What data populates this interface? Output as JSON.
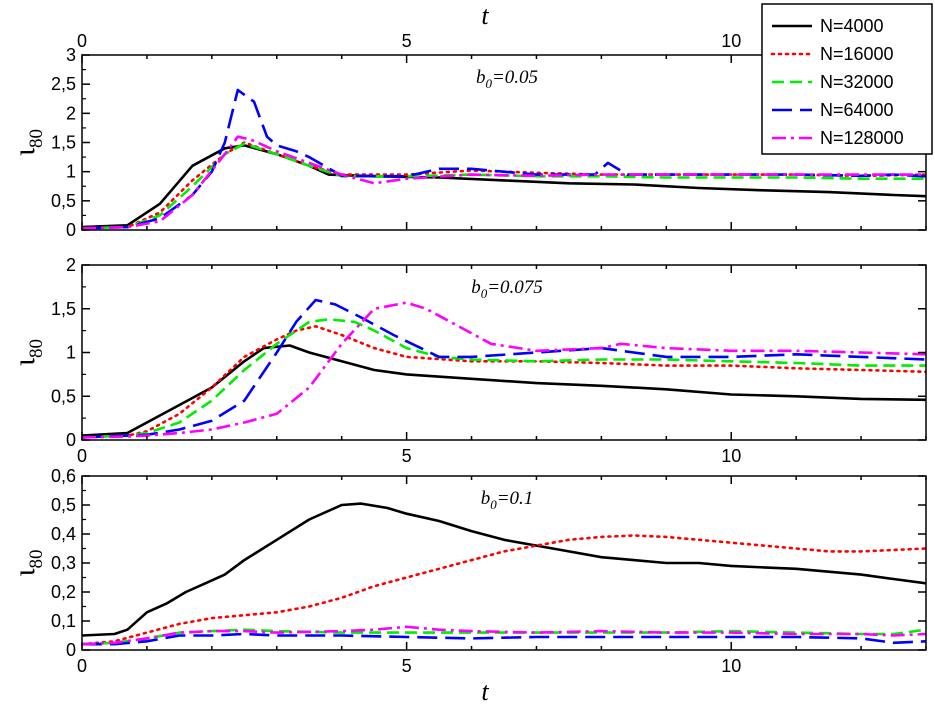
{
  "chart_data": {
    "type": "line",
    "xlabel": "t",
    "xlim": [
      0,
      13
    ],
    "x_ticks": [
      0,
      5,
      10
    ],
    "legend": {
      "location": "top-right",
      "entries": [
        "N=4000",
        "N=16000",
        "N=32000",
        "N=64000",
        "N=128000"
      ]
    },
    "series_styles": [
      {
        "name": "N=4000",
        "color": "#000000",
        "dash": "solid"
      },
      {
        "name": "N=16000",
        "color": "#ff0000",
        "dash": "dotted"
      },
      {
        "name": "N=32000",
        "color": "#00ee00",
        "dash": "dashed"
      },
      {
        "name": "N=64000",
        "color": "#0000ff",
        "dash": "long-dashed"
      },
      {
        "name": "N=128000",
        "color": "#ff00ff",
        "dash": "dash-dot"
      }
    ],
    "panels": [
      {
        "annotation_base": "b",
        "annotation_sub": "0",
        "annotation_value": "=0.05",
        "ylabel_main": "ι",
        "ylabel_sub": "80",
        "ylim": [
          0,
          3
        ],
        "y_ticks": [
          0,
          0.5,
          1,
          1.5,
          2,
          2.5,
          3
        ],
        "y_tick_labels": [
          "0",
          "0,5",
          "1",
          "1,5",
          "2",
          "2,5",
          "3"
        ],
        "series": [
          {
            "name": "N=4000",
            "x": [
              0,
              0.7,
              1.2,
              1.7,
              2.2,
              2.5,
              3.0,
              3.5,
              3.8,
              4.5,
              5.5,
              6.5,
              7.5,
              8.5,
              9.5,
              10.5,
              11.5,
              12.5,
              13
            ],
            "y": [
              0.05,
              0.08,
              0.45,
              1.1,
              1.4,
              1.45,
              1.3,
              1.1,
              0.95,
              0.92,
              0.9,
              0.85,
              0.8,
              0.78,
              0.72,
              0.68,
              0.65,
              0.6,
              0.58
            ]
          },
          {
            "name": "N=16000",
            "x": [
              0,
              0.7,
              1.2,
              1.7,
              2.2,
              2.5,
              3.0,
              3.5,
              4.0,
              5.0,
              6.0,
              7.0,
              8.0,
              9.0,
              10.0,
              11.0,
              12.0,
              13
            ],
            "y": [
              0.03,
              0.05,
              0.3,
              0.85,
              1.3,
              1.5,
              1.3,
              1.1,
              0.95,
              0.95,
              1.02,
              0.98,
              0.95,
              0.95,
              0.95,
              0.95,
              0.93,
              0.95
            ]
          },
          {
            "name": "N=32000",
            "x": [
              0,
              0.7,
              1.2,
              1.7,
              2.2,
              2.5,
              3.0,
              3.5,
              4.0,
              5.0,
              6.0,
              7.0,
              8.0,
              9.0,
              10.0,
              11.0,
              12.0,
              13
            ],
            "y": [
              0.03,
              0.05,
              0.25,
              0.75,
              1.3,
              1.48,
              1.3,
              1.1,
              0.92,
              0.92,
              0.95,
              0.92,
              0.92,
              0.9,
              0.9,
              0.9,
              0.88,
              0.88
            ]
          },
          {
            "name": "N=64000",
            "x": [
              0,
              0.7,
              1.2,
              1.7,
              2.0,
              2.2,
              2.4,
              2.65,
              2.85,
              3.0,
              3.3,
              3.5,
              4.0,
              5.0,
              5.5,
              6.0,
              7.0,
              7.9,
              8.1,
              8.4,
              9.0,
              10.0,
              11.0,
              12.0,
              12.5,
              13
            ],
            "y": [
              0.03,
              0.05,
              0.2,
              0.6,
              1.0,
              1.5,
              2.4,
              2.2,
              1.6,
              1.45,
              1.35,
              1.25,
              0.93,
              0.92,
              1.05,
              1.05,
              0.95,
              0.95,
              1.15,
              0.95,
              0.95,
              0.95,
              0.95,
              0.93,
              0.95,
              0.92
            ]
          },
          {
            "name": "N=128000",
            "x": [
              0,
              0.7,
              1.2,
              1.7,
              2.2,
              2.4,
              2.6,
              3.0,
              3.5,
              4.0,
              4.5,
              5.0,
              6.0,
              7.0,
              8.0,
              9.0,
              10.0,
              11.0,
              12.0,
              13
            ],
            "y": [
              0.03,
              0.05,
              0.15,
              0.6,
              1.3,
              1.6,
              1.55,
              1.35,
              1.15,
              0.95,
              0.8,
              0.88,
              0.95,
              0.93,
              0.95,
              0.95,
              0.95,
              0.95,
              0.95,
              0.95
            ]
          }
        ]
      },
      {
        "annotation_base": "b",
        "annotation_sub": "0",
        "annotation_value": "=0.075",
        "ylabel_main": "ι",
        "ylabel_sub": "80",
        "ylim": [
          0,
          2
        ],
        "y_ticks": [
          0,
          0.5,
          1,
          1.5,
          2
        ],
        "y_tick_labels": [
          "0",
          "0,5",
          "1",
          "1,5",
          "2"
        ],
        "series": [
          {
            "name": "N=4000",
            "x": [
              0,
              0.7,
              1.0,
              1.5,
              2.0,
              2.5,
              2.8,
              3.2,
              3.5,
              4.0,
              4.5,
              5.0,
              6.0,
              7.0,
              8.0,
              9.0,
              10.0,
              11.0,
              12.0,
              13
            ],
            "y": [
              0.05,
              0.08,
              0.2,
              0.4,
              0.6,
              0.9,
              1.05,
              1.08,
              1.0,
              0.9,
              0.8,
              0.75,
              0.7,
              0.65,
              0.62,
              0.58,
              0.52,
              0.5,
              0.47,
              0.46
            ]
          },
          {
            "name": "N=16000",
            "x": [
              0,
              0.7,
              1.0,
              1.5,
              2.0,
              2.5,
              3.0,
              3.3,
              3.6,
              4.0,
              4.5,
              5.0,
              6.0,
              7.0,
              8.0,
              9.0,
              10.0,
              11.0,
              12.0,
              13
            ],
            "y": [
              0.03,
              0.05,
              0.1,
              0.3,
              0.6,
              0.95,
              1.15,
              1.25,
              1.3,
              1.2,
              1.05,
              0.95,
              0.9,
              0.9,
              0.88,
              0.85,
              0.85,
              0.82,
              0.8,
              0.78
            ]
          },
          {
            "name": "N=32000",
            "x": [
              0,
              0.7,
              1.0,
              1.5,
              2.0,
              2.5,
              3.0,
              3.5,
              3.8,
              4.2,
              4.5,
              5.0,
              5.5,
              6.0,
              7.0,
              8.0,
              9.0,
              10.0,
              11.0,
              12.0,
              13
            ],
            "y": [
              0.03,
              0.05,
              0.08,
              0.2,
              0.45,
              0.8,
              1.1,
              1.35,
              1.38,
              1.35,
              1.25,
              1.05,
              0.95,
              0.92,
              0.9,
              0.92,
              0.92,
              0.9,
              0.88,
              0.85,
              0.85
            ]
          },
          {
            "name": "N=64000",
            "x": [
              0,
              0.7,
              1.0,
              1.5,
              2.0,
              2.5,
              3.0,
              3.3,
              3.6,
              3.9,
              4.3,
              4.8,
              5.5,
              6.0,
              7.0,
              8.0,
              8.5,
              9.0,
              10.0,
              11.0,
              12.0,
              13
            ],
            "y": [
              0.03,
              0.05,
              0.06,
              0.12,
              0.22,
              0.45,
              1.0,
              1.35,
              1.6,
              1.55,
              1.4,
              1.2,
              0.95,
              0.95,
              1.0,
              1.05,
              1.0,
              0.95,
              0.95,
              0.98,
              0.95,
              0.92
            ]
          },
          {
            "name": "N=128000",
            "x": [
              0,
              0.7,
              1.0,
              1.5,
              2.0,
              2.5,
              3.0,
              3.5,
              4.0,
              4.5,
              5.0,
              5.3,
              5.8,
              6.3,
              7.0,
              8.0,
              8.3,
              9.0,
              10.0,
              11.0,
              12.0,
              13
            ],
            "y": [
              0.03,
              0.04,
              0.05,
              0.08,
              0.12,
              0.2,
              0.3,
              0.6,
              1.1,
              1.5,
              1.57,
              1.5,
              1.3,
              1.1,
              1.02,
              1.05,
              1.1,
              1.05,
              1.02,
              1.02,
              1.0,
              0.98
            ]
          }
        ]
      },
      {
        "annotation_base": "b",
        "annotation_sub": "0",
        "annotation_value": "=0.1",
        "ylabel_main": "ι",
        "ylabel_sub": "80",
        "ylim": [
          0,
          0.6
        ],
        "y_ticks": [
          0,
          0.1,
          0.2,
          0.3,
          0.4,
          0.5,
          0.6
        ],
        "y_tick_labels": [
          "0",
          "0,1",
          "0,2",
          "0,3",
          "0,4",
          "0,5",
          "0,6"
        ],
        "series": [
          {
            "name": "N=4000",
            "x": [
              0,
              0.5,
              0.7,
              1.0,
              1.3,
              1.6,
              1.9,
              2.2,
              2.5,
              3.0,
              3.5,
              4.0,
              4.3,
              4.7,
              5.0,
              5.5,
              6.0,
              6.5,
              7.0,
              7.5,
              8.0,
              8.5,
              9.0,
              9.5,
              10.0,
              10.5,
              11.0,
              11.5,
              12.0,
              12.5,
              13
            ],
            "y": [
              0.05,
              0.055,
              0.07,
              0.13,
              0.16,
              0.2,
              0.23,
              0.26,
              0.31,
              0.38,
              0.45,
              0.5,
              0.505,
              0.49,
              0.47,
              0.445,
              0.41,
              0.38,
              0.36,
              0.34,
              0.32,
              0.31,
              0.3,
              0.3,
              0.29,
              0.285,
              0.28,
              0.27,
              0.26,
              0.245,
              0.23
            ]
          },
          {
            "name": "N=16000",
            "x": [
              0,
              0.5,
              1.0,
              1.5,
              2.0,
              2.5,
              3.0,
              3.5,
              4.0,
              4.5,
              5.0,
              5.5,
              6.0,
              6.5,
              7.0,
              7.5,
              8.0,
              8.5,
              9.0,
              9.5,
              10.0,
              10.5,
              11.0,
              11.5,
              12.0,
              12.5,
              13
            ],
            "y": [
              0.02,
              0.03,
              0.06,
              0.09,
              0.11,
              0.12,
              0.13,
              0.15,
              0.18,
              0.22,
              0.25,
              0.28,
              0.31,
              0.34,
              0.36,
              0.38,
              0.39,
              0.395,
              0.39,
              0.38,
              0.37,
              0.36,
              0.35,
              0.34,
              0.34,
              0.345,
              0.35
            ]
          },
          {
            "name": "N=32000",
            "x": [
              0,
              0.5,
              1.0,
              1.5,
              2.0,
              2.5,
              3.0,
              4.0,
              5.0,
              6.0,
              7.0,
              8.0,
              9.0,
              10.0,
              11.0,
              12.0,
              12.5,
              13
            ],
            "y": [
              0.02,
              0.025,
              0.04,
              0.06,
              0.065,
              0.07,
              0.065,
              0.06,
              0.06,
              0.06,
              0.06,
              0.06,
              0.06,
              0.065,
              0.06,
              0.055,
              0.055,
              0.07
            ]
          },
          {
            "name": "N=64000",
            "x": [
              0,
              0.5,
              1.0,
              1.5,
              2.0,
              2.5,
              3.0,
              4.0,
              5.0,
              6.0,
              7.0,
              8.0,
              9.0,
              10.0,
              11.0,
              12.0,
              12.5,
              13
            ],
            "y": [
              0.02,
              0.02,
              0.03,
              0.05,
              0.05,
              0.055,
              0.05,
              0.05,
              0.045,
              0.04,
              0.045,
              0.045,
              0.045,
              0.045,
              0.045,
              0.04,
              0.025,
              0.03
            ]
          },
          {
            "name": "N=128000",
            "x": [
              0,
              0.5,
              1.0,
              1.5,
              2.0,
              2.5,
              3.0,
              4.0,
              4.5,
              5.0,
              5.5,
              6.0,
              7.0,
              8.0,
              9.0,
              10.0,
              11.0,
              12.0,
              12.5,
              13
            ],
            "y": [
              0.02,
              0.025,
              0.04,
              0.06,
              0.065,
              0.065,
              0.06,
              0.065,
              0.07,
              0.08,
              0.07,
              0.065,
              0.06,
              0.065,
              0.06,
              0.06,
              0.055,
              0.055,
              0.05,
              0.055
            ]
          }
        ]
      }
    ]
  }
}
